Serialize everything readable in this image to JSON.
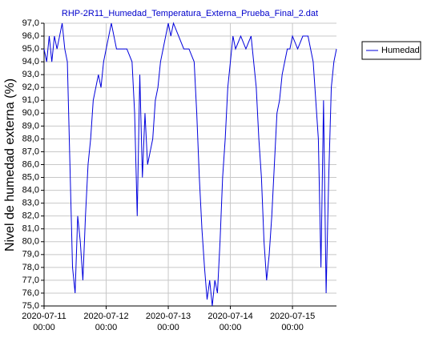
{
  "chart_data": {
    "type": "line",
    "title": "RHP-2R11_Humedad_Temperatura_Externa_Prueba_Final_2.dat",
    "y_label": "Nivel de humedad externa (%)",
    "x": [
      "2020-07-11 00:00",
      "2020-07-11 01:00",
      "2020-07-11 02:00",
      "2020-07-11 03:00",
      "2020-07-11 04:00",
      "2020-07-11 05:00",
      "2020-07-11 06:00",
      "2020-07-11 07:00",
      "2020-07-11 08:00",
      "2020-07-11 09:00",
      "2020-07-11 10:00",
      "2020-07-11 11:00",
      "2020-07-11 12:00",
      "2020-07-11 13:00",
      "2020-07-11 14:00",
      "2020-07-11 15:00",
      "2020-07-11 16:00",
      "2020-07-11 17:00",
      "2020-07-11 18:00",
      "2020-07-11 19:00",
      "2020-07-11 20:00",
      "2020-07-11 21:00",
      "2020-07-11 22:00",
      "2020-07-11 23:00",
      "2020-07-12 00:00",
      "2020-07-12 01:00",
      "2020-07-12 02:00",
      "2020-07-12 03:00",
      "2020-07-12 04:00",
      "2020-07-12 06:00",
      "2020-07-12 08:00",
      "2020-07-12 10:00",
      "2020-07-12 11:00",
      "2020-07-12 12:00",
      "2020-07-12 13:00",
      "2020-07-12 14:00",
      "2020-07-12 15:00",
      "2020-07-12 16:00",
      "2020-07-12 17:00",
      "2020-07-12 18:00",
      "2020-07-12 19:00",
      "2020-07-12 20:00",
      "2020-07-12 21:00",
      "2020-07-12 22:00",
      "2020-07-12 23:00",
      "2020-07-13 00:00",
      "2020-07-13 01:00",
      "2020-07-13 02:00",
      "2020-07-13 04:00",
      "2020-07-13 06:00",
      "2020-07-13 08:00",
      "2020-07-13 10:00",
      "2020-07-13 11:00",
      "2020-07-13 12:00",
      "2020-07-13 13:00",
      "2020-07-13 14:00",
      "2020-07-13 15:00",
      "2020-07-13 16:00",
      "2020-07-13 17:00",
      "2020-07-13 18:00",
      "2020-07-13 19:00",
      "2020-07-13 20:00",
      "2020-07-13 21:00",
      "2020-07-13 22:00",
      "2020-07-13 23:00",
      "2020-07-14 00:00",
      "2020-07-14 01:00",
      "2020-07-14 02:00",
      "2020-07-14 04:00",
      "2020-07-14 06:00",
      "2020-07-14 08:00",
      "2020-07-14 10:00",
      "2020-07-14 11:00",
      "2020-07-14 12:00",
      "2020-07-14 13:00",
      "2020-07-14 14:00",
      "2020-07-14 15:00",
      "2020-07-14 16:00",
      "2020-07-14 17:00",
      "2020-07-14 18:00",
      "2020-07-14 19:00",
      "2020-07-14 20:00",
      "2020-07-14 21:00",
      "2020-07-14 22:00",
      "2020-07-14 23:00",
      "2020-07-15 00:00",
      "2020-07-15 02:00",
      "2020-07-15 04:00",
      "2020-07-15 06:00",
      "2020-07-15 07:00",
      "2020-07-15 08:00",
      "2020-07-15 09:00",
      "2020-07-15 10:00",
      "2020-07-15 11:00",
      "2020-07-15 12:00",
      "2020-07-15 13:00",
      "2020-07-15 14:00",
      "2020-07-15 15:00",
      "2020-07-15 16:00",
      "2020-07-15 17:00"
    ],
    "series": [
      {
        "name": "Humedad",
        "color": "#0000dd",
        "values": [
          95,
          94,
          96,
          94,
          96,
          95,
          96,
          97,
          95,
          94,
          86,
          78,
          76,
          82,
          80,
          77,
          82,
          86,
          88,
          91,
          92,
          93,
          92,
          94,
          95,
          96,
          97,
          96,
          95,
          95,
          95,
          94,
          90,
          82,
          93,
          85,
          90,
          86,
          87,
          88,
          91,
          92,
          94,
          95,
          96,
          97,
          96,
          97,
          96,
          95,
          95,
          94,
          90,
          85,
          81,
          78,
          75.5,
          77,
          75,
          77,
          76,
          80,
          85,
          88,
          92,
          94,
          96,
          95,
          96,
          95,
          96,
          92,
          88,
          85,
          80,
          77,
          79,
          82,
          86,
          90,
          91,
          93,
          94,
          95,
          95,
          96,
          95,
          96,
          96,
          95,
          94,
          91,
          88,
          78,
          91,
          76,
          85,
          92,
          94,
          95
        ]
      }
    ],
    "xlim": [
      "2020-07-11 00:00",
      "2020-07-15 17:00"
    ],
    "xticks": [
      "2020-07-11 00:00",
      "2020-07-12 00:00",
      "2020-07-13 00:00",
      "2020-07-14 00:00",
      "2020-07-15 00:00"
    ],
    "ylim": [
      75,
      97
    ],
    "yticks": [
      {
        "value": 75,
        "label": "75,0"
      },
      {
        "value": 76,
        "label": "76,0"
      },
      {
        "value": 77,
        "label": "77,0"
      },
      {
        "value": 78,
        "label": "78,0"
      },
      {
        "value": 79,
        "label": "79,0"
      },
      {
        "value": 80,
        "label": "80,0"
      },
      {
        "value": 81,
        "label": "81,0"
      },
      {
        "value": 82,
        "label": "82,0"
      },
      {
        "value": 83,
        "label": "83,0"
      },
      {
        "value": 84,
        "label": "84,0"
      },
      {
        "value": 85,
        "label": "85,0"
      },
      {
        "value": 86,
        "label": "86,0"
      },
      {
        "value": 87,
        "label": "87,0"
      },
      {
        "value": 88,
        "label": "88,0"
      },
      {
        "value": 89,
        "label": "89,0"
      },
      {
        "value": 90,
        "label": "90,0"
      },
      {
        "value": 91,
        "label": "91,0"
      },
      {
        "value": 92,
        "label": "92,0"
      },
      {
        "value": 93,
        "label": "93,0"
      },
      {
        "value": 94,
        "label": "94,0"
      },
      {
        "value": 95,
        "label": "95,0"
      },
      {
        "value": 96,
        "label": "96,0"
      },
      {
        "value": 97,
        "label": "97,0"
      }
    ],
    "grid": true,
    "legend": "top-right"
  }
}
